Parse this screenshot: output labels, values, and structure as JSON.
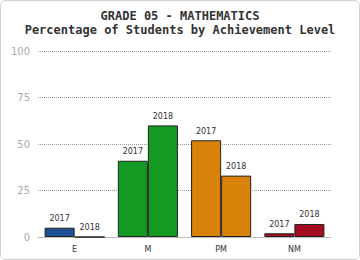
{
  "chart_data": {
    "type": "bar",
    "title": "GRADE 05 - MATHEMATICS",
    "subtitle": "Percentage of Students by Achievement Level",
    "categories": [
      "E",
      "M",
      "PM",
      "NM"
    ],
    "series": [
      {
        "name": "2017",
        "colors": [
          "#1c4f93",
          "#139a23",
          "#d98209",
          "#a30d1f"
        ],
        "values": [
          5,
          41,
          52,
          2
        ]
      },
      {
        "name": "2018",
        "colors": [
          "#1c4f93",
          "#139a23",
          "#d98209",
          "#a30d1f"
        ],
        "values": [
          0,
          60,
          33,
          7
        ]
      }
    ],
    "ylim": [
      0,
      100
    ],
    "yticks": [
      0,
      25,
      50,
      75,
      100
    ],
    "grid": true
  }
}
